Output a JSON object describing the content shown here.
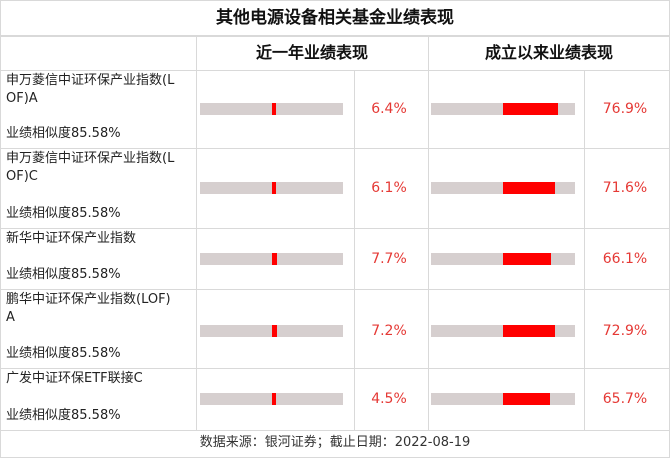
{
  "title": "其他电源设备相关基金业绩表现",
  "headers": {
    "recent": "近一年业绩表现",
    "since": "成立以来业绩表现"
  },
  "footer": "数据来源：银河证券；截止日期：2022-08-19",
  "colors": {
    "bar_fill": "#ff0000",
    "bar_track": "#d6cfcf",
    "pct_text": "#e53935"
  },
  "chart_data": {
    "type": "bar",
    "categories": [
      "申万菱信中证环保产业指数(LOF)A",
      "申万菱信中证环保产业指数(LOF)C",
      "新华中证环保产业指数",
      "鹏华中证环保产业指数(LOF)A",
      "广发中证环保ETF联接C"
    ],
    "series": [
      {
        "name": "近一年业绩表现",
        "values": [
          6.4,
          6.1,
          7.7,
          7.2,
          4.5
        ]
      },
      {
        "name": "成立以来业绩表现",
        "values": [
          76.9,
          71.6,
          66.1,
          72.9,
          65.7
        ]
      }
    ],
    "bar_scale": {
      "recent": [
        -100,
        100
      ],
      "since": [
        -100,
        100
      ]
    }
  },
  "funds": [
    {
      "name_line1": "申万菱信中证环保产业指数(L",
      "name_line2": "OF)A",
      "similarity": "业绩相似度85.58%",
      "recent": 6.4,
      "recent_label": "6.4%",
      "since": 76.9,
      "since_label": "76.9%"
    },
    {
      "name_line1": "申万菱信中证环保产业指数(L",
      "name_line2": "OF)C",
      "similarity": "业绩相似度85.58%",
      "recent": 6.1,
      "recent_label": "6.1%",
      "since": 71.6,
      "since_label": "71.6%"
    },
    {
      "name_line1": "新华中证环保产业指数",
      "name_line2": "",
      "similarity": "业绩相似度85.58%",
      "recent": 7.7,
      "recent_label": "7.7%",
      "since": 66.1,
      "since_label": "66.1%"
    },
    {
      "name_line1": "鹏华中证环保产业指数(LOF)",
      "name_line2": "A",
      "similarity": "业绩相似度85.58%",
      "recent": 7.2,
      "recent_label": "7.2%",
      "since": 72.9,
      "since_label": "72.9%"
    },
    {
      "name_line1": "广发中证环保ETF联接C",
      "name_line2": "",
      "similarity": "业绩相似度85.58%",
      "recent": 4.5,
      "recent_label": "4.5%",
      "since": 65.7,
      "since_label": "65.7%"
    }
  ]
}
